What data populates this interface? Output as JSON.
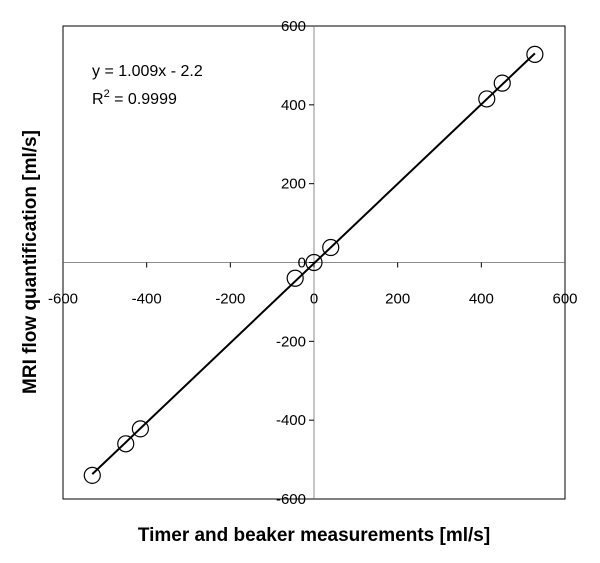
{
  "chart_data": {
    "type": "scatter",
    "xlabel": "Timer and beaker measurements [ml/s]",
    "ylabel": "MRI flow quantification [ml/s]",
    "xlim": [
      -600,
      600
    ],
    "ylim": [
      -600,
      600
    ],
    "xticks": [
      -600,
      -400,
      -200,
      0,
      200,
      400,
      600
    ],
    "yticks": [
      600,
      400,
      200,
      0,
      -200,
      -400,
      -600
    ],
    "xtick_labels": [
      "-600",
      "-400",
      "-200",
      "0",
      "200",
      "400",
      "600"
    ],
    "ytick_labels": [
      "600",
      "400",
      "200",
      "0",
      "-200",
      "-400",
      "-600"
    ],
    "grid": false,
    "series": [
      {
        "marker": "open-circle",
        "points": [
          {
            "x": -530,
            "y": -540
          },
          {
            "x": -450,
            "y": -460
          },
          {
            "x": -415,
            "y": -422
          },
          {
            "x": -45,
            "y": -40
          },
          {
            "x": 0,
            "y": 0
          },
          {
            "x": 40,
            "y": 38
          },
          {
            "x": 413,
            "y": 415
          },
          {
            "x": 450,
            "y": 455
          },
          {
            "x": 528,
            "y": 528
          }
        ]
      }
    ],
    "trendline": {
      "slope": 1.009,
      "intercept": -2.2,
      "x_range": [
        -530,
        528
      ]
    },
    "annotations": {
      "equation": "y = 1.009x - 2.2",
      "r2_prefix": "R",
      "r2_sup": "2",
      "r2_value": " = 0.9999"
    }
  }
}
